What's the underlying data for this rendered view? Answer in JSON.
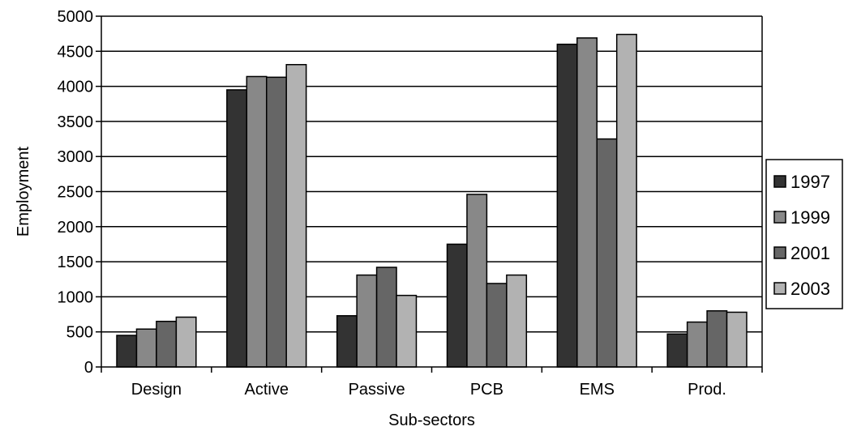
{
  "chart_data": {
    "type": "bar",
    "title": "",
    "xlabel": "Sub-sectors",
    "ylabel": "Employment",
    "ylim": [
      0,
      5000
    ],
    "yticks": [
      0,
      500,
      1000,
      1500,
      2000,
      2500,
      3000,
      3500,
      4000,
      4500,
      5000
    ],
    "grid": true,
    "legend_position": "right",
    "categories": [
      "Design",
      "Active",
      "Passive",
      "PCB",
      "EMS",
      "Prod."
    ],
    "series": [
      {
        "name": "1997",
        "color": "#333333",
        "values": [
          450,
          3950,
          730,
          1750,
          4600,
          470
        ]
      },
      {
        "name": "1999",
        "color": "#888888",
        "values": [
          540,
          4140,
          1310,
          2460,
          4690,
          640
        ]
      },
      {
        "name": "2001",
        "color": "#666666",
        "values": [
          650,
          4130,
          1420,
          1190,
          3250,
          800
        ]
      },
      {
        "name": "2003",
        "color": "#b2b2b2",
        "values": [
          710,
          4310,
          1020,
          1310,
          4740,
          780
        ]
      }
    ]
  }
}
